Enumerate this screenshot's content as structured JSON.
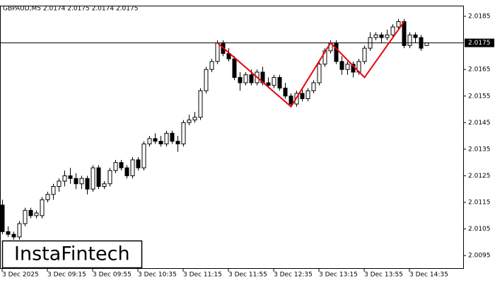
{
  "chart_data": {
    "type": "candlestick",
    "title": "GBPAUD,M5  2.0174 2.0175 2.0174 2.0175",
    "logo": "InstaFintech",
    "categories": [
      "3 Dec 2025",
      null,
      null,
      null,
      null,
      null,
      null,
      null,
      "3 Dec 09:15",
      null,
      null,
      null,
      null,
      null,
      null,
      null,
      "3 Dec 09:55",
      null,
      null,
      null,
      null,
      null,
      null,
      null,
      "3 Dec 10:35",
      null,
      null,
      null,
      null,
      null,
      null,
      null,
      "3 Dec 11:15",
      null,
      null,
      null,
      null,
      null,
      null,
      null,
      "3 Dec 11:55",
      null,
      null,
      null,
      null,
      null,
      null,
      null,
      "3 Dec 12:35",
      null,
      null,
      null,
      null,
      null,
      null,
      null,
      "3 Dec 13:15",
      null,
      null,
      null,
      null,
      null,
      null,
      null,
      "3 Dec 13:55",
      null,
      null,
      null,
      null,
      null,
      null,
      null,
      "3 Dec 14:35",
      null,
      null,
      null
    ],
    "open": [
      2.0114,
      2.0104,
      2.0103,
      2.0102,
      2.0107,
      2.0112,
      2.011,
      2.011,
      2.0116,
      2.0118,
      2.0121,
      2.0123,
      2.0125,
      2.0124,
      2.0122,
      2.0124,
      2.012,
      2.0128,
      2.0121,
      2.0122,
      2.0127,
      2.013,
      2.0128,
      2.0125,
      2.0131,
      2.0128,
      2.0137,
      2.0139,
      2.0138,
      2.0137,
      2.0141,
      2.0138,
      2.0137,
      2.0145,
      2.0146,
      2.0147,
      2.0157,
      2.0165,
      2.0168,
      2.0175,
      2.0171,
      2.0169,
      2.0162,
      2.016,
      2.0163,
      2.016,
      2.0164,
      2.016,
      2.0159,
      2.0162,
      2.0158,
      2.0155,
      2.0152,
      2.0156,
      2.0154,
      2.0157,
      2.016,
      2.0167,
      2.0172,
      2.0175,
      2.0168,
      2.0165,
      2.0167,
      2.0164,
      2.0168,
      2.0173,
      2.0177,
      2.0178,
      2.0177,
      2.0178,
      2.0181,
      2.0183,
      2.0174,
      2.0178,
      2.0177,
      2.0174
    ],
    "high": [
      2.0116,
      2.0106,
      2.0104,
      2.0108,
      2.0113,
      2.0113,
      2.0112,
      2.0117,
      2.0119,
      2.0122,
      2.0124,
      2.0127,
      2.0128,
      2.0126,
      2.0125,
      2.0125,
      2.0129,
      2.0129,
      2.0123,
      2.0128,
      2.0131,
      2.0131,
      2.0129,
      2.0132,
      2.0132,
      2.0138,
      2.014,
      2.0141,
      2.014,
      2.0142,
      2.0142,
      2.014,
      2.0146,
      2.0148,
      2.0149,
      2.0158,
      2.0166,
      2.0169,
      2.0176,
      2.0176,
      2.0173,
      2.017,
      2.0164,
      2.0164,
      2.0165,
      2.0165,
      2.0166,
      2.0162,
      2.0163,
      2.0163,
      2.016,
      2.0156,
      2.0157,
      2.0158,
      2.0158,
      2.0161,
      2.0168,
      2.0173,
      2.0176,
      2.0176,
      2.017,
      2.0168,
      2.0168,
      2.0169,
      2.0174,
      2.0179,
      2.0179,
      2.0179,
      2.018,
      2.0182,
      2.0184,
      2.0184,
      2.0179,
      2.0179,
      2.0178,
      2.0175
    ],
    "low": [
      2.0103,
      2.0102,
      2.0101,
      2.0101,
      2.0106,
      2.0109,
      2.0109,
      2.0109,
      2.0115,
      2.0116,
      2.0119,
      2.0121,
      2.0122,
      2.012,
      2.012,
      2.0118,
      2.0119,
      2.012,
      2.012,
      2.0121,
      2.0126,
      2.0127,
      2.0124,
      2.0124,
      2.0127,
      2.0127,
      2.0136,
      2.0137,
      2.0136,
      2.0136,
      2.0137,
      2.0134,
      2.0136,
      2.0144,
      2.0145,
      2.0146,
      2.0156,
      2.0164,
      2.0167,
      2.017,
      2.0168,
      2.0161,
      2.0157,
      2.0159,
      2.0159,
      2.0159,
      2.0159,
      2.0158,
      2.0158,
      2.0157,
      2.0154,
      2.0151,
      2.0151,
      2.0153,
      2.0153,
      2.0156,
      2.0159,
      2.0166,
      2.0171,
      2.0167,
      2.0163,
      2.0163,
      2.0162,
      2.0163,
      2.0167,
      2.0172,
      2.0176,
      2.0175,
      2.0176,
      2.0177,
      2.018,
      2.0173,
      2.0173,
      2.0175,
      2.0172,
      2.0174
    ],
    "close": [
      2.0104,
      2.0103,
      2.0102,
      2.0107,
      2.0112,
      2.011,
      2.0111,
      2.0116,
      2.0118,
      2.0121,
      2.0123,
      2.0125,
      2.0124,
      2.0122,
      2.0124,
      2.012,
      2.0128,
      2.0121,
      2.0122,
      2.0127,
      2.013,
      2.0128,
      2.0125,
      2.0131,
      2.0128,
      2.0137,
      2.0139,
      2.0138,
      2.0137,
      2.0141,
      2.0138,
      2.0137,
      2.0145,
      2.0146,
      2.0147,
      2.0157,
      2.0165,
      2.0168,
      2.0175,
      2.0171,
      2.0169,
      2.0162,
      2.016,
      2.0163,
      2.016,
      2.0164,
      2.016,
      2.0159,
      2.0162,
      2.0158,
      2.0155,
      2.0152,
      2.0156,
      2.0154,
      2.0157,
      2.016,
      2.0167,
      2.0172,
      2.0175,
      2.0168,
      2.0165,
      2.0167,
      2.0164,
      2.0168,
      2.0173,
      2.0177,
      2.0178,
      2.0177,
      2.0178,
      2.0181,
      2.0183,
      2.0174,
      2.0178,
      2.0177,
      2.0173,
      2.0175
    ],
    "up_color": "#ffffff",
    "down_color": "#000000",
    "ylim": [
      2.009,
      2.0189
    ],
    "yticks": [
      2.0185,
      2.0165,
      2.0155,
      2.0145,
      2.0135,
      2.0125,
      2.0115,
      2.0105,
      2.0095
    ],
    "price_line": 2.0175,
    "pattern": {
      "color": "#e8000b",
      "points": [
        {
          "x": 38,
          "y": 2.0175
        },
        {
          "x": 51,
          "y": 2.0151
        },
        {
          "x": 58,
          "y": 2.0175
        },
        {
          "x": 64,
          "y": 2.0162
        },
        {
          "x": 71,
          "y": 2.0183
        }
      ]
    }
  }
}
